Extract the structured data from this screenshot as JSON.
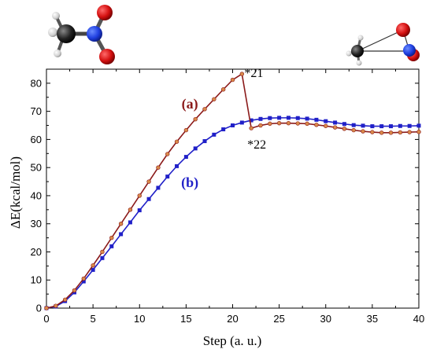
{
  "chart_data": {
    "type": "line",
    "xlabel": "Step (a. u.)",
    "ylabel": "ΔE(kcal/mol)",
    "xlim": [
      0,
      40
    ],
    "ylim": [
      0,
      85
    ],
    "xticks": [
      "0",
      "5",
      "10",
      "15",
      "20",
      "25",
      "30",
      "35",
      "40"
    ],
    "yticks": [
      "0",
      "10",
      "20",
      "30",
      "40",
      "50",
      "60",
      "70",
      "80"
    ],
    "grid": false,
    "series": [
      {
        "name": "(a)",
        "color": "#8b1a1a",
        "marker_color": "#d98a4a",
        "x": [
          0,
          1,
          2,
          3,
          4,
          5,
          6,
          7,
          8,
          9,
          10,
          11,
          12,
          13,
          14,
          15,
          16,
          17,
          18,
          19,
          20,
          21,
          22,
          23,
          24,
          25,
          26,
          27,
          28,
          29,
          30,
          31,
          32,
          33,
          34,
          35,
          36,
          37,
          38,
          39,
          40
        ],
        "values": [
          0,
          0.8,
          3.0,
          6.3,
          10.5,
          15.2,
          20.0,
          25.0,
          30.0,
          35.0,
          40.0,
          45.0,
          50.0,
          54.8,
          59.2,
          63.3,
          67.2,
          70.8,
          74.3,
          77.8,
          81.2,
          83.3,
          64.0,
          65.0,
          65.6,
          65.8,
          65.8,
          65.7,
          65.6,
          65.2,
          64.8,
          64.3,
          63.8,
          63.3,
          62.9,
          62.6,
          62.4,
          62.4,
          62.5,
          62.6,
          62.7
        ]
      },
      {
        "name": "(b)",
        "color": "#2020c8",
        "marker_color": "#2020c8",
        "x": [
          0,
          1,
          2,
          3,
          4,
          5,
          6,
          7,
          8,
          9,
          10,
          11,
          12,
          13,
          14,
          15,
          16,
          17,
          18,
          19,
          20,
          21,
          22,
          23,
          24,
          25,
          26,
          27,
          28,
          29,
          30,
          31,
          32,
          33,
          34,
          35,
          36,
          37,
          38,
          39,
          40
        ],
        "values": [
          0,
          0.6,
          2.5,
          5.6,
          9.5,
          13.6,
          17.8,
          22.0,
          26.3,
          30.5,
          34.8,
          38.8,
          42.8,
          46.8,
          50.5,
          53.8,
          56.8,
          59.4,
          61.7,
          63.6,
          65.0,
          66.0,
          66.8,
          67.3,
          67.6,
          67.7,
          67.7,
          67.6,
          67.4,
          67.0,
          66.5,
          66.0,
          65.5,
          65.1,
          64.9,
          64.7,
          64.7,
          64.7,
          64.8,
          64.8,
          64.9
        ]
      }
    ],
    "annotations": [
      {
        "text": "*21",
        "x": 21,
        "y": 83.3
      },
      {
        "text": "*22",
        "x": 22,
        "y": 64.0
      }
    ],
    "legend": "inline labels"
  }
}
